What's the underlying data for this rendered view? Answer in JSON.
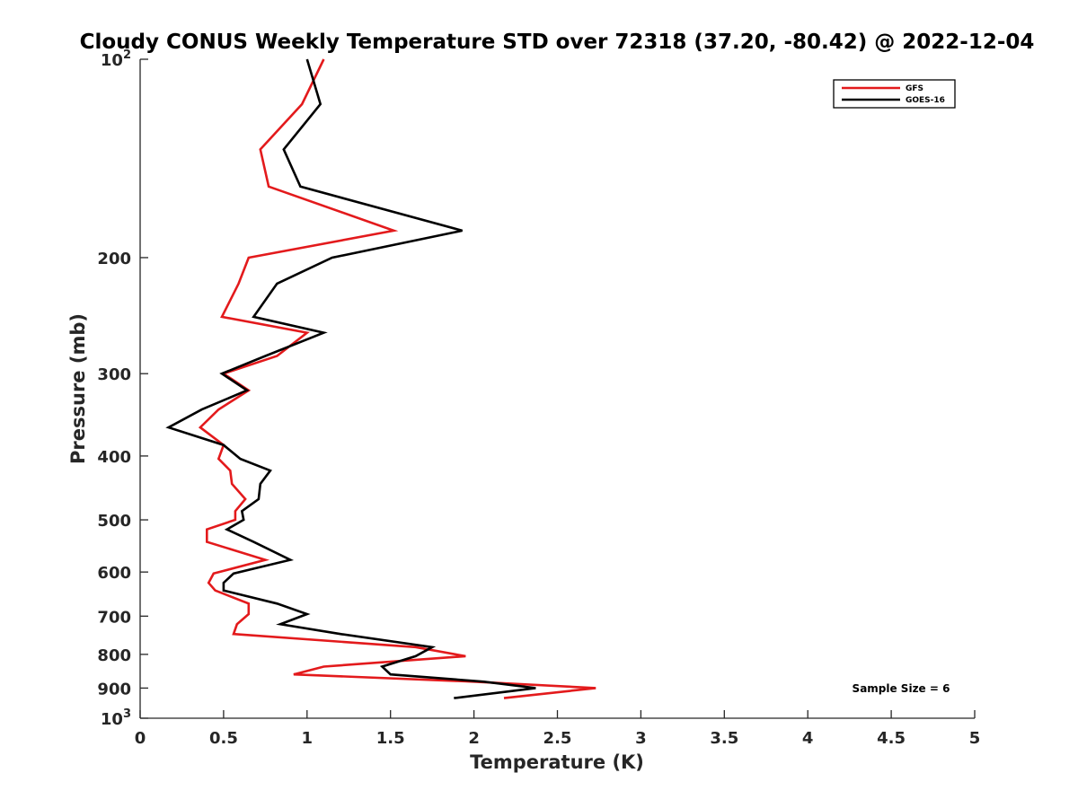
{
  "chart_data": {
    "type": "line",
    "title": "Cloudy CONUS Weekly Temperature STD over 72318 (37.20, -80.42) @ 2022-12-04",
    "xlabel": "Temperature (K)",
    "ylabel": "Pressure (mb)",
    "xlim": [
      0,
      5
    ],
    "ylim": [
      100,
      1000
    ],
    "y_scale": "log",
    "y_reversed": true,
    "x_ticks": [
      0,
      0.5,
      1,
      1.5,
      2,
      2.5,
      3,
      3.5,
      4,
      4.5,
      5
    ],
    "x_tick_labels": [
      "0",
      "0.5",
      "1",
      "1.5",
      "2",
      "2.5",
      "3",
      "3.5",
      "4",
      "4.5",
      "5"
    ],
    "y_ticks": [
      200,
      300,
      400,
      500,
      600,
      700,
      800,
      900
    ],
    "y_tick_labels": [
      "200",
      "300",
      "400",
      "500",
      "600",
      "700",
      "800",
      "900"
    ],
    "y_end_labels": [
      {
        "value": 100,
        "base": "10",
        "exp": "2"
      },
      {
        "value": 1000,
        "base": "10",
        "exp": "3"
      }
    ],
    "grid": false,
    "legend_position": "top-right",
    "annotation": "Sample Size = 6",
    "series": [
      {
        "name": "GFS",
        "color": "#e31a1c",
        "x": [
          1.1,
          0.97,
          0.72,
          0.77,
          1.52,
          0.65,
          0.59,
          0.49,
          1.0,
          0.82,
          0.5,
          0.65,
          0.47,
          0.36,
          0.5,
          0.47,
          0.54,
          0.55,
          0.63,
          0.57,
          0.57,
          0.4,
          0.4,
          0.75,
          0.44,
          0.41,
          0.45,
          0.65,
          0.65,
          0.58,
          0.56,
          1.65,
          1.95,
          1.1,
          0.92,
          2.0,
          2.73,
          2.18
        ],
        "y": [
          100,
          117,
          137,
          156,
          182,
          200,
          219,
          246,
          260,
          282,
          300,
          318,
          340,
          362,
          385,
          404,
          421,
          441,
          465,
          485,
          500,
          517,
          540,
          575,
          603,
          623,
          640,
          670,
          695,
          720,
          745,
          780,
          805,
          835,
          858,
          880,
          900,
          932
        ]
      },
      {
        "name": "GOES-16",
        "color": "#000000",
        "x": [
          1.0,
          1.08,
          0.86,
          0.96,
          1.93,
          1.15,
          0.82,
          0.68,
          1.1,
          0.75,
          0.49,
          0.64,
          0.37,
          0.17,
          0.5,
          0.6,
          0.78,
          0.72,
          0.71,
          0.61,
          0.62,
          0.52,
          0.68,
          0.9,
          0.56,
          0.5,
          0.5,
          0.82,
          1.0,
          0.84,
          1.2,
          1.75,
          1.65,
          1.45,
          1.5,
          2.06,
          2.37,
          1.88
        ],
        "y": [
          100,
          117,
          137,
          156,
          182,
          200,
          219,
          246,
          260,
          282,
          300,
          318,
          340,
          362,
          385,
          404,
          421,
          441,
          465,
          485,
          500,
          517,
          540,
          575,
          603,
          623,
          640,
          670,
          695,
          720,
          745,
          780,
          805,
          835,
          858,
          880,
          900,
          932
        ]
      }
    ]
  }
}
